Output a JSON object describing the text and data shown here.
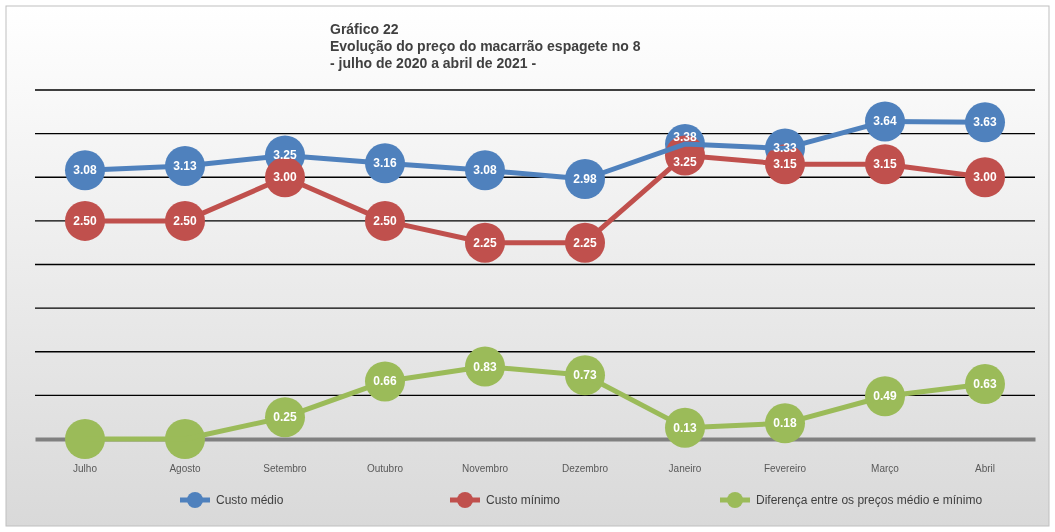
{
  "chart_data": {
    "type": "line",
    "title": "Gráfico 22\nEvolução do preço do macarrão espagete no 8\n- julho de 2020 a abril de 2021 -",
    "categories": [
      "Julho",
      "Agosto",
      "Setembro",
      "Outubro",
      "Novembro",
      "Dezembro",
      "Janeiro",
      "Fevereiro",
      "Março",
      "Abril"
    ],
    "series": [
      {
        "name": "Custo médio",
        "color": "#4f81bd",
        "values": [
          3.08,
          3.13,
          3.25,
          3.16,
          3.08,
          2.98,
          3.38,
          3.33,
          3.64,
          3.63
        ],
        "value_labels": [
          "3.08",
          "3.13",
          "3.25",
          "3.16",
          "3.08",
          "2.98",
          "3.38",
          "3.33",
          "3.64",
          "3.63"
        ]
      },
      {
        "name": "Custo mínimo",
        "color": "#c0504d",
        "values": [
          2.5,
          2.5,
          3.0,
          2.5,
          2.25,
          2.25,
          3.25,
          3.15,
          3.15,
          3.0
        ],
        "value_labels": [
          "2.50",
          "2.50",
          "3.00",
          "2.50",
          "2.25",
          "2.25",
          "3.25",
          "3.15",
          "3.15",
          "3.00"
        ]
      },
      {
        "name": "Diferença entre os preços médio e mínimo",
        "color": "#9bbb59",
        "values": [
          0,
          0,
          0.25,
          0.66,
          0.83,
          0.73,
          0.13,
          0.18,
          0.49,
          0.63
        ],
        "value_labels": [
          null,
          null,
          "0.25",
          "0.66",
          "0.83",
          "0.73",
          "0.13",
          "0.18",
          "0.49",
          "0.63"
        ]
      }
    ],
    "ylim": [
      0,
      4
    ],
    "yticks": [
      {
        "value": 0,
        "label": null
      },
      {
        "value": 0.5,
        "label": null
      },
      {
        "value": 1,
        "label": null
      },
      {
        "value": 1.5,
        "label": null
      },
      {
        "value": 2,
        "label": null
      },
      {
        "value": 2.5,
        "label": null
      },
      {
        "value": 3,
        "label": null
      },
      {
        "value": 3.5,
        "label": null
      },
      {
        "value": 4,
        "label": null
      }
    ],
    "tick_labels": "x",
    "grid": "y",
    "legend": "bottom",
    "marker": "circle",
    "line_style": "solid"
  }
}
